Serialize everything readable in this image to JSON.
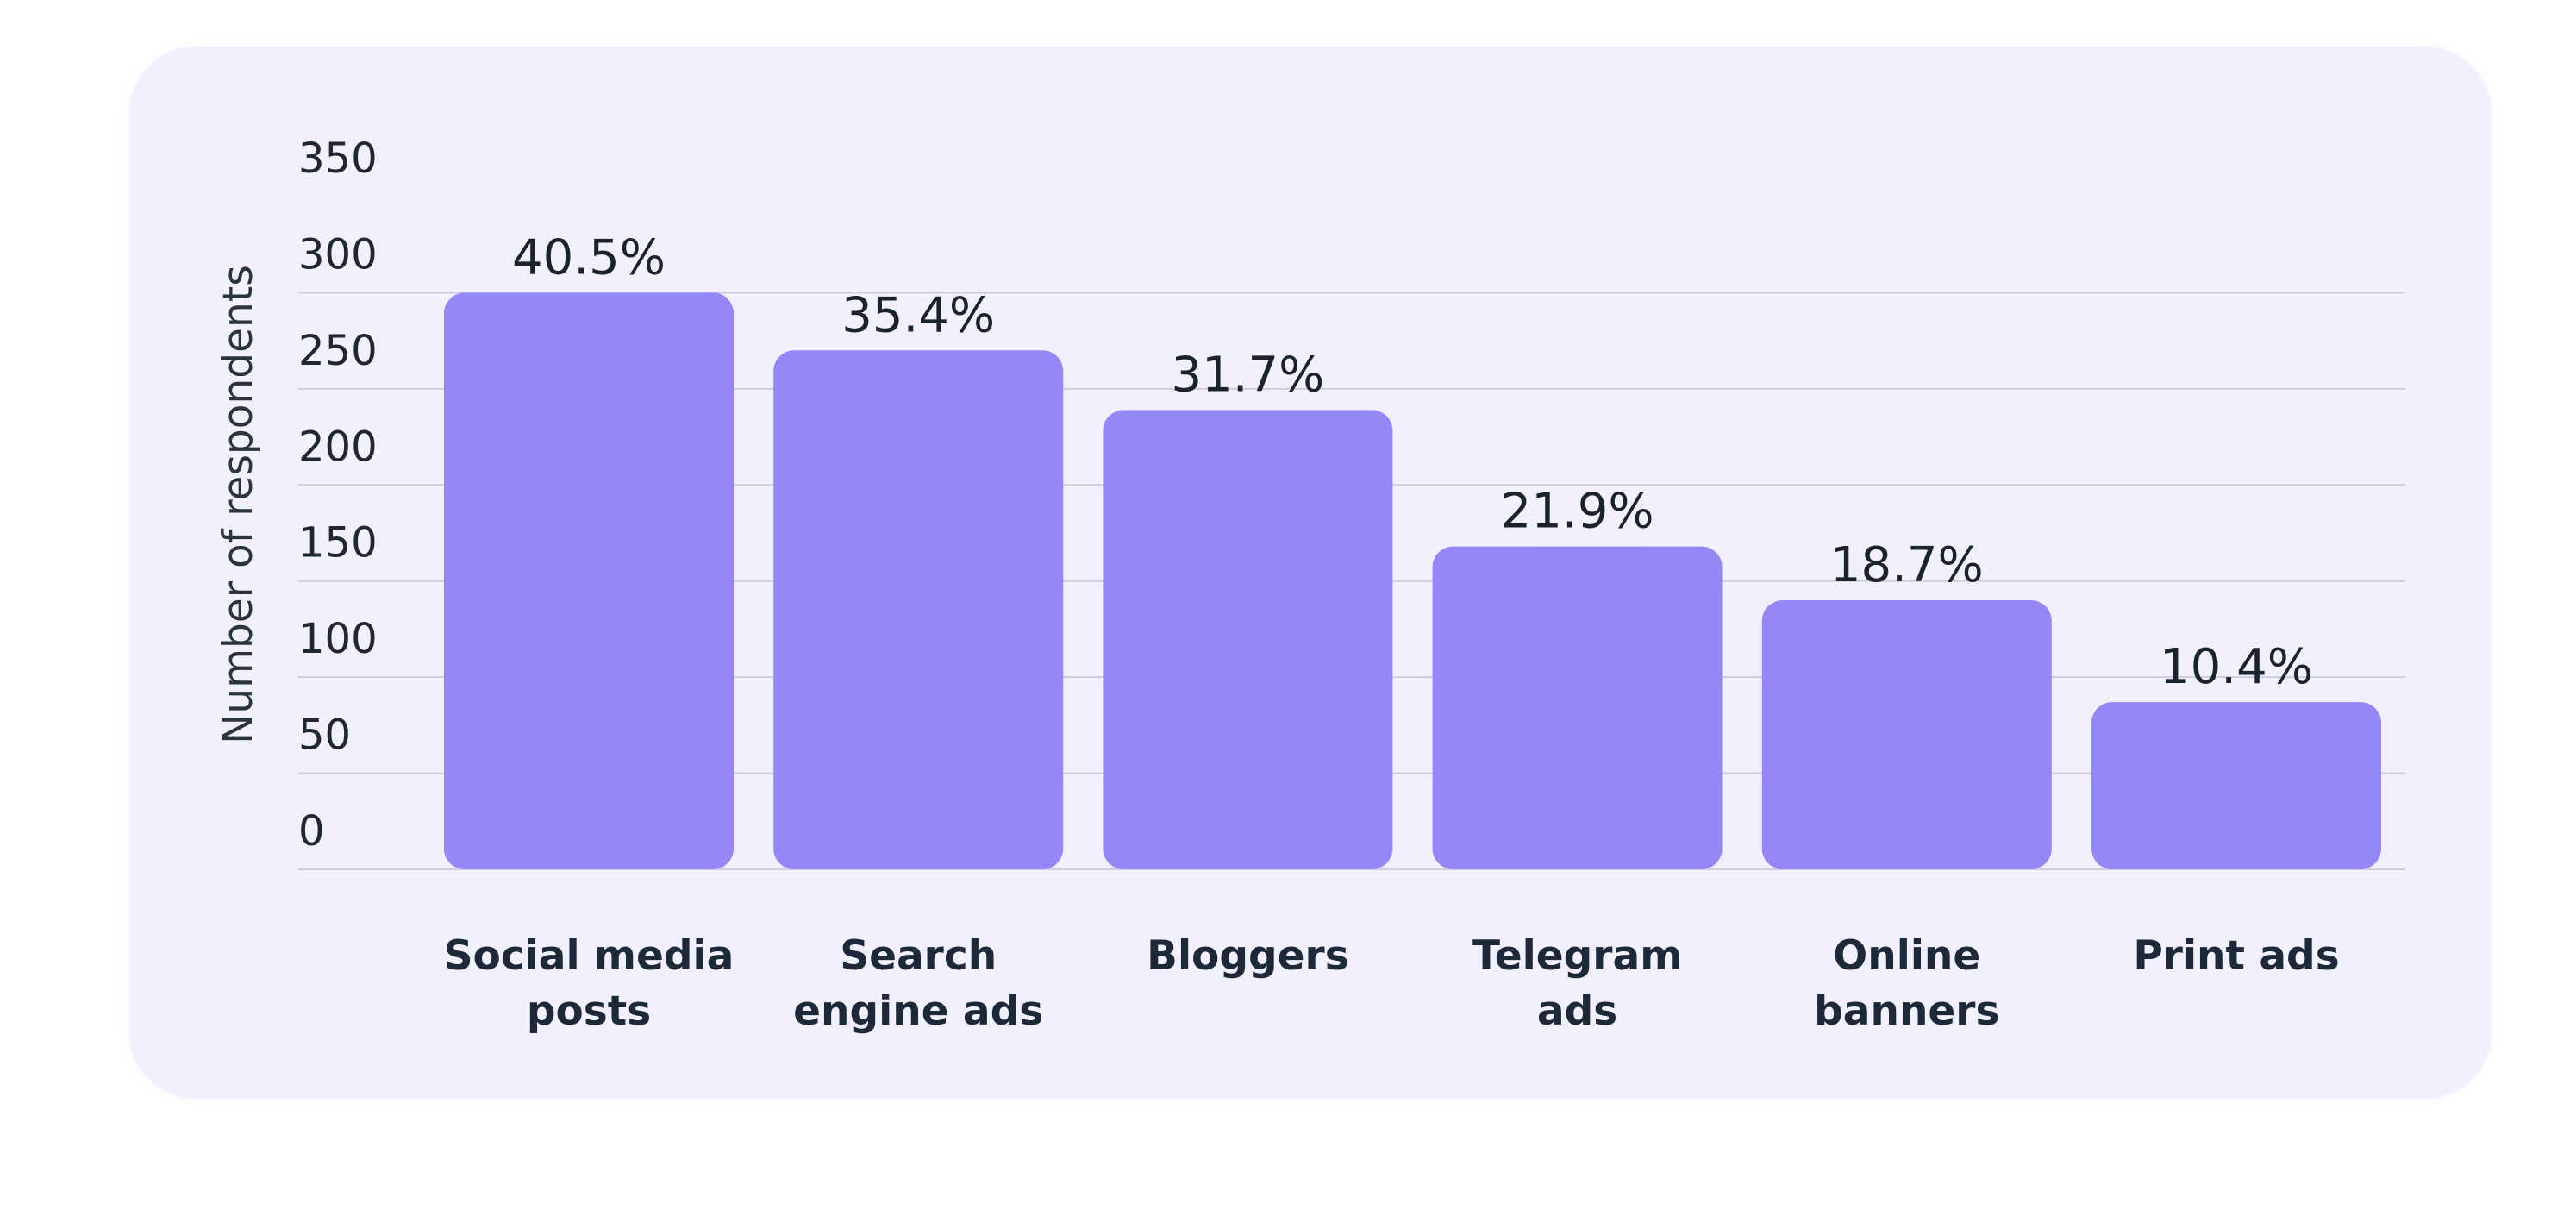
{
  "chart_data": {
    "type": "bar",
    "ylabel": "Number of respondents",
    "ylim": [
      0,
      350
    ],
    "yticks": [
      0,
      50,
      100,
      150,
      200,
      250,
      300,
      350
    ],
    "grid": true,
    "categories": [
      [
        "Social media",
        "posts"
      ],
      [
        "Search",
        "engine ads"
      ],
      [
        "Bloggers"
      ],
      [
        "Telegram",
        "ads"
      ],
      [
        "Online",
        "banners"
      ],
      [
        "Print ads"
      ]
    ],
    "values": [
      300,
      270,
      239,
      168,
      140,
      87
    ],
    "data_labels": [
      "40.5%",
      "35.4%",
      "31.7%",
      "21.9%",
      "18.7%",
      "10.4%"
    ],
    "colors": {
      "bar": "#9487f6",
      "grid": "#cfcbdc",
      "background": "#f2f0fc"
    }
  }
}
